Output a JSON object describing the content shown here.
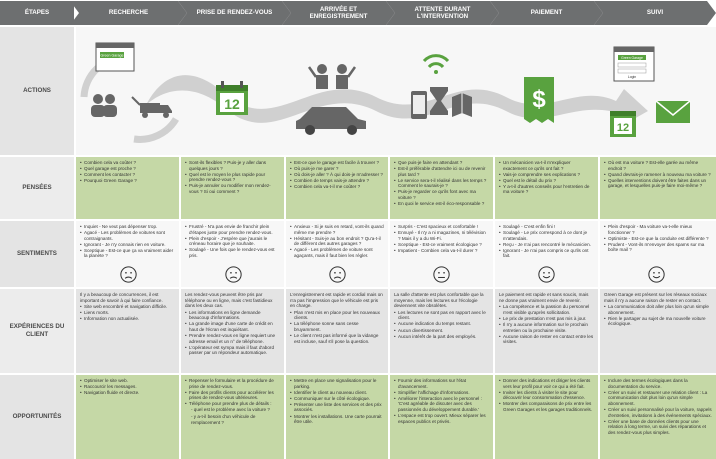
{
  "headers": {
    "etapes": "ÉTAPES",
    "stages": [
      "RECHERCHE",
      "PRISE DE RENDEZ-VOUS",
      "ARRIVÉE ET ENREGISTREMENT",
      "ATTENTE DURANT L'INTERVENTION",
      "PAIEMENT",
      "SUIVI"
    ]
  },
  "lanes": {
    "actions": "ACTIONS",
    "pensees": "PENSÉES",
    "sentiments": "SENTIMENTS",
    "experiences": "EXPÉRIENCES DU CLIENT",
    "opportunites": "OPPORTUNITÉS"
  },
  "icons": {
    "window_1_label": "Green Garage",
    "calendar_day": "12",
    "calendar_day_2": "12",
    "window_2_label": "Green Garage",
    "login_label": "Login"
  },
  "colors": {
    "header": "#6d6f70",
    "green": "#c5d8a6",
    "icon_green": "#59a23f",
    "arrow_gray": "#d0d0d0"
  },
  "pensees": [
    [
      "Combien cela va coûter ?",
      "Quel garage est proche ?",
      "Comment les contacter ?",
      "Pourquoi Green Garage ?"
    ],
    [
      "Sont-ils flexibles ? Puis-je y aller dans quelques jours ?",
      "Quel est le moyen le plus rapide pour prendre rendez-vous ?",
      "Puis-je annuler ou modifier mon rendez-vous ? Si oui comment ?"
    ],
    [
      "Est-ce que le garage est facile à trouver ?",
      "Où puis-je me garer ?",
      "Où dois-je aller ? À qui dois-je m'adresser ?",
      "Combien de temps vais-je attendre ?",
      "Combien cela va-t-il me coûter ?"
    ],
    [
      "Que puis-je faire en attendant ?",
      "Est-il préférable d'attendre ici ou de revenir plus tard ?",
      "Le service sera-t-il réalisé dans les temps ? Comment le saurais-je ?",
      "Puis-je regarder ce qu'ils font avec ma voiture ?",
      "En quoi le service est-il éco-responsable ?"
    ],
    [
      "Un mécanicien va-t-il m'expliquer exactement ce qu'ils ont fait ?",
      "Vais-je comprendre ses explications ?",
      "Quel est le détail du prix ?",
      "Y a-t-il d'autres conseils pour l'entretien de ma voiture ?"
    ],
    [
      "Où est ma voiture ? Est-elle garée au même endroit ?",
      "Quand devrais-je ramener à nouveau ma voiture ?",
      "Quelles interventions doivent être faites dans un garage, et lesquelles puis-je faire moi-même ?"
    ]
  ],
  "sentiments": [
    [
      "Inquiet - Ne veut pas dépenser trop.",
      "Agacé - Les problèmes de voitures sont contraignants.",
      "Ignorant - Je n'y connais rien en voiture.",
      "Sceptique - Est-ce que ça va vraiment aider la planète ?"
    ],
    [
      "Frustré - N'a pas envie de franchir plein d'étapes juste pour prendre rendez-vous.",
      "Plein d'espoir - J'espère que j'aurais le créneau horaire que je souhaite.",
      "Soulagé - Une fois que le rendez-vous est pris."
    ],
    [
      "Anxieux - Si je suis en retard, vont-ils quand même me prendre ?",
      "Hésitant - Suis-je au bon endroit ? Qu'a-t-il de différent des autres garages ?",
      "Agacé - Les problèmes de voiture sont agaçants, mais il faut bien les régler."
    ],
    [
      "Surpris - C'est spacieux et confortable !",
      "Ennuyé - Il n'y a ni magazines, ni télévision ? Mais il y a du Wi-Fi.",
      "Sceptique - Est-ce vraiment écologique ?",
      "Impatient - Combien cela va-t-il durer ?"
    ],
    [
      "Soulagé - C'est enfin fini !",
      "Soulagé - Le prix correspond à ce dont je m'attendais.",
      "Reçu - Je n'ai pas rencontré le mécanicien.",
      "Ignorant - Je n'ai pas compris ce qu'ils ont fait."
    ],
    [
      "Plein d'espoir - Ma voiture va-t-elle mieux fonctionner ?",
      "Optimiste - Est-ce que la conduite est différente ?",
      "Prudent - Vont-ils m'envoyer des spams sur ma boîte mail ?"
    ]
  ],
  "experiences": [
    [
      "Il y a beaucoup de concurrences, il est important de savoir à qui faire confiance.",
      "Site web encombré et navigation difficile.",
      "Liens morts.",
      "Information non actualisée."
    ],
    [
      "Les rendez-vous peuvent être pris par téléphone ou en ligne, mais c'est fastidieux dans les deux cas.",
      "Les informations en ligne demande beaucoup d'informations.",
      "La grande image d'une carte de crédit en haut de l'écran est inquiétant.",
      "Prendre rendez-vous en ligne requiert une adresse email et un n° de téléphone.",
      "L'opérateur est sympa mais il faut d'abord passer par un répondeur automatique."
    ],
    [
      "L'enregistrement est rapide et cordial mais on n'a pas l'impression que le véhicule est pris en charge.",
      "Plan n'est mis en place pour les nouveaux clients.",
      "La téléphone sonne sans cesse bruyamment.",
      "Le client n'est pas informé que la vidange est incluse, sauf s'il pose la question."
    ],
    [
      "La salle d'attente est plus confortable que la moyenne, mais les lectures sur l'écologie deviennent vite obsolètes.",
      "Les lectures ne sont pas en rapport avec le client.",
      "Aucune indication du temps restant.",
      "Aucun divertissement.",
      "Aucun intérêt de la part des employés."
    ],
    [
      "Le paiement est rapide et sans soucis, mais ne donne pas vraiment envie de revenir.",
      "La compétence et la passion du personnel n'est visible qu'après sollicitation.",
      "Le prix de prestation n'est pas mis à jour.",
      "Il n'y a aucune information sur le prochain entretien ou la prochaine visite.",
      "Aucune raison de rester en contact entre les visites."
    ],
    [
      "Green Garage est présent sur les réseaux sociaux mais il n'y a aucune raison de rester en contact.",
      "La communication doit aller plus loin qu'un simple abonnement.",
      "Rien le partager au sujet de ma nouvelle voiture écologique."
    ]
  ],
  "opportunites": [
    [
      "Optimiser le site web.",
      "Raccourcir les messages.",
      "Navigation fluide et directe."
    ],
    [
      "Repenser le formulaire et la procédure de prise de rendez-vous.",
      "Faire des profils clients pour accélérer les prises de rendez-vous ultérieures.",
      "Téléphone pour prendre plus de détails :",
      "- quel est le problème avec la voiture ?",
      "- y a-t-il besoin d'un véhicule de remplacement ?"
    ],
    [
      "Mettre en place une signalisation pour le parking.",
      "Identifier le client au nouveau client.",
      "Communiquer sur le côté écologique.",
      "Présenter une liste des services et des prix associés.",
      "Montrer les installations. Une carte pourrait être utile."
    ],
    [
      "Fournir des informations sur l'état d'avancement.",
      "Simplifier l'affichage d'informations.",
      "Améliorer l'interaction avec le personnel : 'C'est agréable de discuter avec des passionnés du développement durable.'",
      "L'espace est trop ouvert. Mieux séparer les espaces publics et privés."
    ],
    [
      "Donner des indications et diriger les clients vers leur profil pour voir ce qui a été fait.",
      "Inviter les clients à visiter le site pour découvrir leur consommation d'essence.",
      "Montrer des comparaisons de prix entre les Green Garages et les garages traditionnels."
    ],
    [
      "Inclure des termes écologiques dans la documentation du service.",
      "Créer un suivi et restaurer une relation client : La communication doit plus loin qu'un simple abonnement.",
      "Créer un suivi personnalisé pour la voiture, rappels d'entretien, invitations à des événements spéciaux.",
      "Créer une base de données clients pour une relation à long terme, un suivi des réparations et des rendez-vous plus simples."
    ]
  ]
}
